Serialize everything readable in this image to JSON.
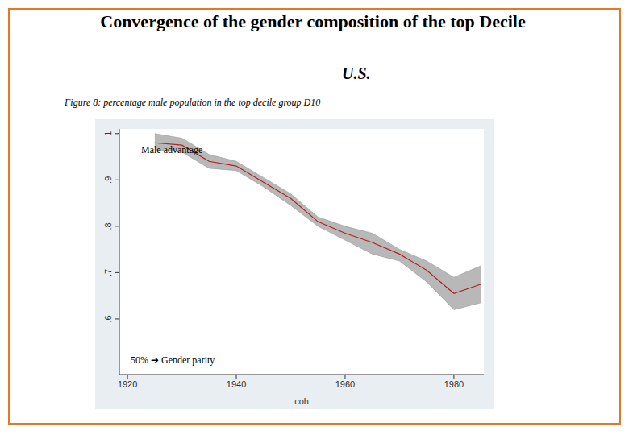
{
  "title": "Convergence of the gender composition of the top Decile",
  "subtitle": "U.S.",
  "chart_data": {
    "type": "line",
    "title": "Figure 8: percentage male population in the top decile group D10",
    "x_label": "coh",
    "x": [
      1925,
      1930,
      1935,
      1940,
      1945,
      1950,
      1955,
      1960,
      1965,
      1970,
      1975,
      1980,
      1985
    ],
    "values": [
      0.98,
      0.975,
      0.94,
      0.93,
      0.895,
      0.86,
      0.81,
      0.785,
      0.765,
      0.74,
      0.705,
      0.655,
      0.675
    ],
    "lower": [
      0.965,
      0.96,
      0.925,
      0.92,
      0.885,
      0.845,
      0.8,
      0.77,
      0.74,
      0.725,
      0.68,
      0.62,
      0.635
    ],
    "upper": [
      1.0,
      0.99,
      0.955,
      0.94,
      0.905,
      0.87,
      0.82,
      0.8,
      0.785,
      0.75,
      0.725,
      0.69,
      0.715
    ],
    "color": "#b22222",
    "xlim": [
      1918.5,
      1985.5
    ],
    "xticks": [
      1920,
      1940,
      1960,
      1980
    ],
    "ylim": [
      0.48,
      1.01
    ],
    "yticks": [
      {
        "value": 0.6,
        "label": ".6"
      },
      {
        "value": 0.7,
        "label": ".7"
      },
      {
        "value": 0.8,
        "label": ".8"
      },
      {
        "value": 0.9,
        "label": ".9"
      },
      1
    ],
    "grid": false,
    "annotations": [
      "Male advantage",
      "50% ➔ Gender parity"
    ]
  }
}
